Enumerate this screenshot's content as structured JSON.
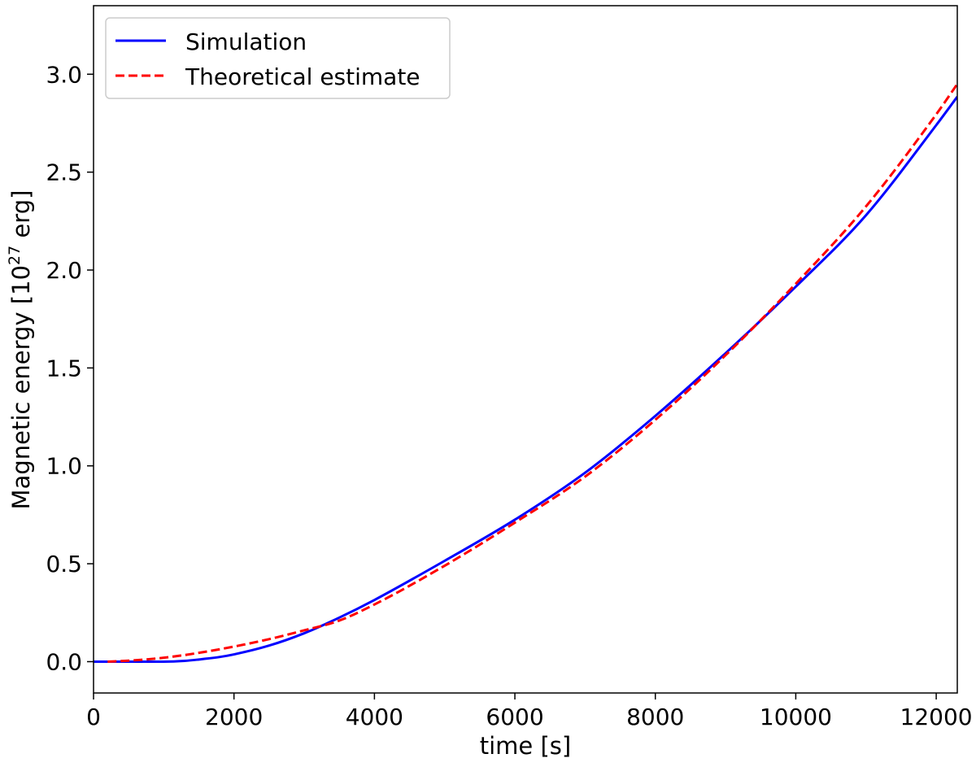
{
  "chart_data": {
    "type": "line",
    "title": "",
    "xlabel": "time [s]",
    "ylabel_prefix": "Magnetic energy [10",
    "ylabel_exponent": "27",
    "ylabel_suffix": " erg]",
    "xlim": [
      0,
      12300
    ],
    "ylim": [
      -0.16,
      3.35
    ],
    "xticks": [
      0,
      2000,
      4000,
      6000,
      8000,
      10000,
      12000
    ],
    "xtick_labels": [
      "0",
      "2000",
      "4000",
      "6000",
      "8000",
      "10000",
      "12000"
    ],
    "yticks": [
      0.0,
      0.5,
      1.0,
      1.5,
      2.0,
      2.5,
      3.0
    ],
    "ytick_labels": [
      "0.0",
      "0.5",
      "1.0",
      "1.5",
      "2.0",
      "2.5",
      "3.0"
    ],
    "grid": false,
    "legend_position": "top-left",
    "series": [
      {
        "name": "Simulation",
        "color": "#0000ff",
        "style": "solid",
        "x": [
          0,
          500,
          1000,
          1300,
          1500,
          1800,
          2000,
          2500,
          3000,
          3500,
          4000,
          5000,
          6000,
          7000,
          8000,
          9000,
          10000,
          11000,
          12000,
          12300
        ],
        "y": [
          0.0,
          0.0,
          0.0,
          0.004,
          0.011,
          0.024,
          0.037,
          0.082,
          0.145,
          0.225,
          0.315,
          0.515,
          0.725,
          0.965,
          1.255,
          1.575,
          1.915,
          2.28,
          2.74,
          2.885
        ]
      },
      {
        "name": "Theoretical estimate",
        "color": "#ff0000",
        "style": "dashed",
        "x": [
          200,
          500,
          1000,
          1500,
          2000,
          2500,
          3000,
          3500,
          4000,
          5000,
          6000,
          7000,
          8000,
          9000,
          10000,
          11000,
          12000,
          12300
        ],
        "y": [
          0.0,
          0.005,
          0.02,
          0.045,
          0.077,
          0.115,
          0.16,
          0.21,
          0.292,
          0.49,
          0.71,
          0.945,
          1.235,
          1.565,
          1.93,
          2.325,
          2.795,
          2.95
        ]
      }
    ]
  }
}
